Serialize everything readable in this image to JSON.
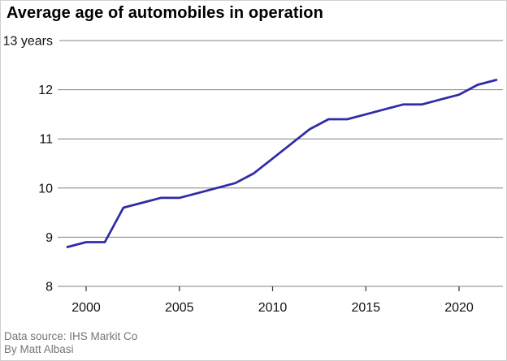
{
  "header": {
    "title": "Average age of automobiles in operation"
  },
  "footer": {
    "source": "Data source: IHS Markit Co",
    "byline": "By Matt Albasi"
  },
  "chart_data": {
    "type": "line",
    "title": "Average age of automobiles in operation",
    "x": [
      1999,
      2000,
      2001,
      2002,
      2003,
      2004,
      2005,
      2006,
      2007,
      2008,
      2009,
      2010,
      2011,
      2012,
      2013,
      2014,
      2015,
      2016,
      2017,
      2018,
      2019,
      2020,
      2021,
      2022
    ],
    "values": [
      8.8,
      8.9,
      8.9,
      9.6,
      9.7,
      9.8,
      9.8,
      9.9,
      10.0,
      10.1,
      10.3,
      10.6,
      10.9,
      11.2,
      11.4,
      11.4,
      11.5,
      11.6,
      11.7,
      11.7,
      11.8,
      11.9,
      12.1,
      12.2
    ],
    "series_name": "Average age of automobiles (years)",
    "xlabel": "",
    "ylabel": "years",
    "ylim": [
      8,
      13
    ],
    "y_ticks": [
      8,
      9,
      10,
      11,
      12,
      13
    ],
    "y_top_tick_label": "13 years",
    "x_ticks": [
      2000,
      2005,
      2010,
      2015,
      2020
    ],
    "grid": "horizontal",
    "legend": "none",
    "colors": {
      "line": "#2e2ca6",
      "grid": "#808080",
      "tick": "#3a3a3a",
      "axis_label": "#111111",
      "footer_text": "#757575",
      "title_text": "#000000",
      "background": "#ffffff"
    }
  }
}
